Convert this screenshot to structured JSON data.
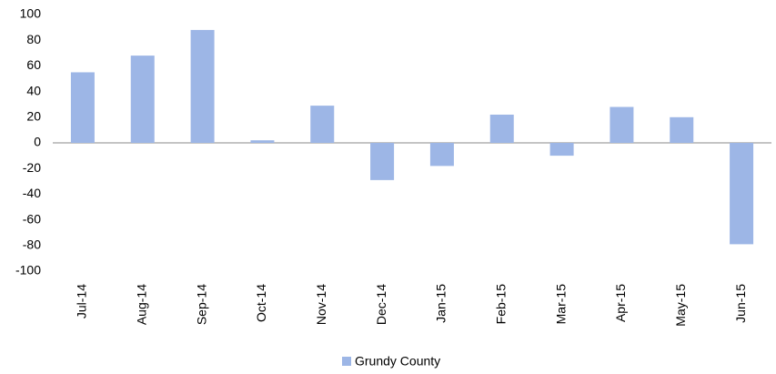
{
  "chart_data": {
    "type": "bar",
    "categories": [
      "Jul-14",
      "Aug-14",
      "Sep-14",
      "Oct-14",
      "Nov-14",
      "Dec-14",
      "Jan-15",
      "Feb-15",
      "Mar-15",
      "Apr-15",
      "May-15",
      "Jun-15"
    ],
    "series": [
      {
        "name": "Grundy County",
        "color": "#9db6e6",
        "values": [
          55,
          68,
          88,
          2,
          29,
          -29,
          -18,
          22,
          -10,
          28,
          20,
          -79
        ]
      }
    ],
    "ylim": [
      -100,
      100
    ],
    "yticks": [
      -100,
      -80,
      -60,
      -40,
      -20,
      0,
      20,
      40,
      60,
      80,
      100
    ],
    "grid": false,
    "legend": "bottom"
  }
}
